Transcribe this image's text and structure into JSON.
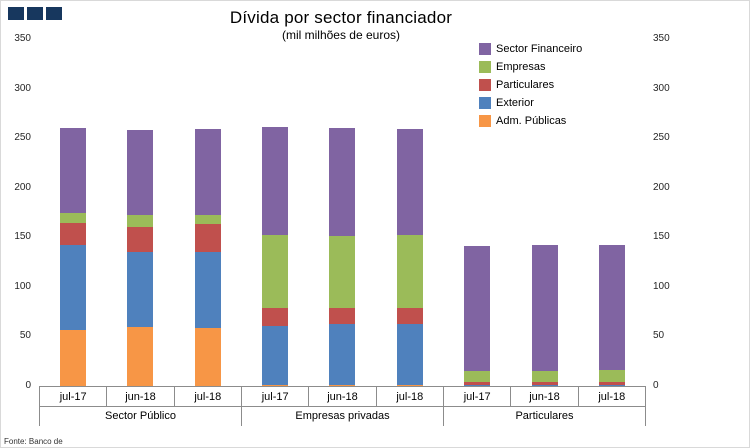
{
  "page": {
    "title": "Dívida por sector financiador",
    "subtitle": "(mil milhões de euros)",
    "source": "Fonte: Banco de",
    "logo_color": "#17375E"
  },
  "chart_data": {
    "type": "bar",
    "stacked": true,
    "title": "Dívida por sector financiador",
    "subtitle": "(mil milhões de euros)",
    "ylim": [
      0,
      350
    ],
    "yticks": [
      0,
      50,
      100,
      150,
      200,
      250,
      300,
      350
    ],
    "dual_y_axis": true,
    "gridlines": false,
    "legend_position": "top-right",
    "legend_order_top_to_bottom": [
      "Sector Financeiro",
      "Empresas",
      "Particulares",
      "Exterior",
      "Adm. Públicas"
    ],
    "groups": [
      "Sector Público",
      "Empresas privadas",
      "Particulares"
    ],
    "categories": [
      "jul-17",
      "jun-18",
      "jul-18"
    ],
    "series_note": "values indexed [group][category]; stacked bottom-to-top in listed order",
    "series": [
      {
        "name": "Adm. Públicas",
        "color": "#F79646",
        "values": [
          [
            57,
            60,
            59
          ],
          [
            1,
            1,
            1
          ],
          [
            0,
            0,
            0
          ]
        ]
      },
      {
        "name": "Exterior",
        "color": "#4F81BD",
        "values": [
          [
            85,
            75,
            76
          ],
          [
            60,
            62,
            62
          ],
          [
            1,
            1,
            1
          ]
        ]
      },
      {
        "name": "Particulares",
        "color": "#C0504D",
        "values": [
          [
            22,
            25,
            28
          ],
          [
            18,
            16,
            16
          ],
          [
            3,
            3,
            3
          ]
        ]
      },
      {
        "name": "Empresas",
        "color": "#9BBB59",
        "values": [
          [
            11,
            13,
            10
          ],
          [
            73,
            72,
            73
          ],
          [
            11,
            11,
            12
          ]
        ]
      },
      {
        "name": "Sector Financeiro",
        "color": "#8064A2",
        "values": [
          [
            85,
            85,
            86
          ],
          [
            109,
            109,
            107
          ],
          [
            126,
            127,
            126
          ]
        ]
      }
    ],
    "totals": {
      "Sector Público": [
        260,
        258,
        259
      ],
      "Empresas privadas": [
        261,
        260,
        259
      ],
      "Particulares": [
        141,
        142,
        142
      ]
    }
  }
}
